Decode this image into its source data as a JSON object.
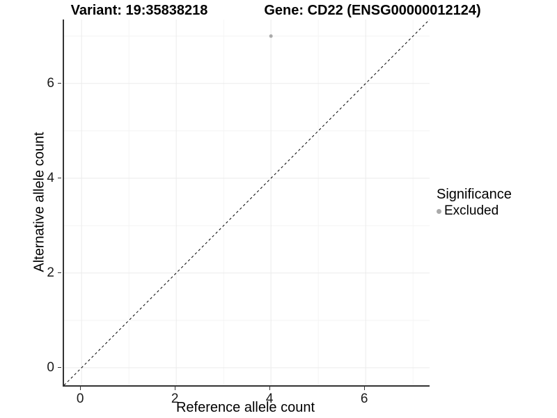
{
  "titles": {
    "left": "Variant: 19:35838218",
    "right": "Gene: CD22 (ENSG00000012124)"
  },
  "chart_data": {
    "type": "scatter",
    "title": "Variant: 19:35838218    Gene: CD22 (ENSG00000012124)",
    "xlabel": "Reference allele count",
    "ylabel": "Alternative allele count",
    "xlim": [
      -0.37,
      7.35
    ],
    "ylim": [
      -0.37,
      7.35
    ],
    "x_ticks": [
      0,
      2,
      4,
      6
    ],
    "y_ticks": [
      0,
      2,
      4,
      6
    ],
    "x_minor_gridlines": [
      1,
      3,
      5,
      7
    ],
    "y_minor_gridlines": [
      1,
      3,
      5,
      7
    ],
    "grid": true,
    "series": [
      {
        "name": "Excluded",
        "color": "#aaaaaa",
        "point_radius": 2.5,
        "points": [
          {
            "x": 4,
            "y": 7
          }
        ]
      }
    ],
    "reference_line": {
      "type": "identity y=x",
      "style": "dashed",
      "color": "#000000"
    },
    "legend": {
      "title": "Significance",
      "position": "right",
      "items": [
        {
          "label": "Excluded",
          "color": "#aaaaaa"
        }
      ]
    },
    "colors": {
      "axis_line": "#333333",
      "major_grid": "#ebebeb",
      "minor_grid": "#f4f4f4",
      "tick_label": "#1a1a1a"
    }
  }
}
